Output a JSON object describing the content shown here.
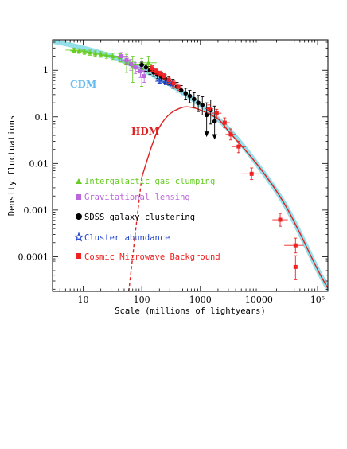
{
  "chart_data": {
    "type": "scatter",
    "xlabel": "Scale (millions of lightyears)",
    "ylabel": "Density fluctuations",
    "xscale": "log",
    "yscale": "log",
    "xlim": [
      3,
      150000
    ],
    "ylim": [
      1.8e-05,
      4.5
    ],
    "x_ticks": [
      {
        "value": 10,
        "label": "10"
      },
      {
        "value": 100,
        "label": "100"
      },
      {
        "value": 1000,
        "label": "1000"
      },
      {
        "value": 10000,
        "label": "10000"
      },
      {
        "value": 100000,
        "label": "10⁵"
      }
    ],
    "y_ticks": [
      {
        "value": 1,
        "label": "1"
      },
      {
        "value": 0.1,
        "label": "0.1"
      },
      {
        "value": 0.01,
        "label": "0.01"
      },
      {
        "value": 0.001,
        "label": "0.001"
      },
      {
        "value": 0.0001,
        "label": "0.0001"
      }
    ],
    "curves": [
      {
        "name": "CDM",
        "color": "#88dde8",
        "x": [
          3,
          10,
          30,
          100,
          300,
          1000,
          3000,
          10000,
          30000,
          100000,
          150000
        ],
        "y": [
          4.2,
          3.0,
          2.0,
          1.05,
          0.5,
          0.18,
          0.055,
          0.0085,
          0.0011,
          5.3e-05,
          2.1e-05
        ]
      },
      {
        "name": "HDM",
        "color": "#dd2222",
        "x": [
          60,
          80,
          100,
          150,
          200,
          300,
          500,
          700,
          1000,
          2000,
          3000,
          10000,
          30000,
          100000,
          150000
        ],
        "y": [
          1.8e-05,
          0.00045,
          0.005,
          0.025,
          0.06,
          0.115,
          0.16,
          0.16,
          0.14,
          0.09,
          0.05,
          0.0085,
          0.0011,
          5.3e-05,
          2.1e-05
        ]
      }
    ],
    "series": [
      {
        "name": "Intergalactic gas clumping",
        "color": "#66cc22",
        "marker": "triangle",
        "points": [
          {
            "x": 7,
            "y": 2.7,
            "xerr": [
              5,
              10
            ],
            "yerr": [
              2.4,
              3.0
            ]
          },
          {
            "x": 8.5,
            "y": 2.6,
            "xerr": [
              6,
              12
            ],
            "yerr": [
              2.3,
              2.9
            ]
          },
          {
            "x": 10.5,
            "y": 2.5,
            "xerr": [
              8,
              14
            ],
            "yerr": [
              2.2,
              2.8
            ]
          },
          {
            "x": 13,
            "y": 2.4,
            "xerr": [
              10,
              17
            ],
            "yerr": [
              2.1,
              2.7
            ]
          },
          {
            "x": 16,
            "y": 2.3,
            "xerr": [
              12,
              21
            ],
            "yerr": [
              2.0,
              2.6
            ]
          },
          {
            "x": 20,
            "y": 2.2,
            "xerr": [
              15,
              26
            ],
            "yerr": [
              1.9,
              2.5
            ]
          },
          {
            "x": 25,
            "y": 2.1,
            "xerr": [
              19,
              33
            ],
            "yerr": [
              1.8,
              2.4
            ]
          },
          {
            "x": 32,
            "y": 2.0,
            "xerr": [
              24,
              42
            ],
            "yerr": [
              1.7,
              2.3
            ]
          },
          {
            "x": 42,
            "y": 1.9,
            "xerr": [
              30,
              60
            ],
            "yerr": [
              1.55,
              2.25
            ]
          },
          {
            "x": 55,
            "y": 1.5,
            "xerr": [
              40,
              80
            ],
            "yerr": [
              0.9,
              2.2
            ]
          },
          {
            "x": 70,
            "y": 1.3,
            "xerr": [
              50,
              150
            ],
            "yerr": [
              0.55,
              2.0
            ]
          },
          {
            "x": 100,
            "y": 1.1,
            "xerr": [
              60,
              160
            ],
            "yerr": [
              0.45,
              1.8
            ]
          },
          {
            "x": 130,
            "y": 1.45,
            "xerr": [
              90,
              180
            ],
            "yerr": [
              0.9,
              2.0
            ]
          }
        ]
      },
      {
        "name": "Gravitational lensing",
        "color": "#bb66dd",
        "marker": "square",
        "points": [
          {
            "x": 45,
            "y": 2.0,
            "xerr": [
              38,
              55
            ],
            "yerr": [
              1.6,
              2.4
            ]
          },
          {
            "x": 55,
            "y": 1.65,
            "xerr": [
              46,
              66
            ],
            "yerr": [
              1.3,
              2.0
            ]
          },
          {
            "x": 65,
            "y": 1.35,
            "xerr": [
              55,
              78
            ],
            "yerr": [
              1.0,
              1.7
            ]
          },
          {
            "x": 78,
            "y": 1.15,
            "xerr": [
              65,
              95
            ],
            "yerr": [
              0.85,
              1.45
            ]
          },
          {
            "x": 95,
            "y": 0.95,
            "xerr": [
              80,
              115
            ],
            "yerr": [
              0.7,
              1.25
            ]
          },
          {
            "x": 110,
            "y": 0.75,
            "xerr": [
              92,
              130
            ],
            "yerr": [
              0.55,
              1.0
            ]
          }
        ]
      },
      {
        "name": "SDSS galaxy clustering",
        "color": "#000000",
        "marker": "circle",
        "points": [
          {
            "x": 100,
            "y": 1.3,
            "yerr": [
              1.1,
              1.5
            ]
          },
          {
            "x": 118,
            "y": 1.15,
            "yerr": [
              0.95,
              1.35
            ]
          },
          {
            "x": 138,
            "y": 1.0,
            "yerr": [
              0.82,
              1.2
            ]
          },
          {
            "x": 160,
            "y": 0.9,
            "yerr": [
              0.74,
              1.08
            ]
          },
          {
            "x": 185,
            "y": 0.8,
            "yerr": [
              0.66,
              0.96
            ]
          },
          {
            "x": 215,
            "y": 0.72,
            "yerr": [
              0.58,
              0.88
            ]
          },
          {
            "x": 250,
            "y": 0.66,
            "yerr": [
              0.53,
              0.8
            ]
          },
          {
            "x": 290,
            "y": 0.6,
            "yerr": [
              0.48,
              0.74
            ]
          },
          {
            "x": 340,
            "y": 0.52,
            "yerr": [
              0.41,
              0.64
            ]
          },
          {
            "x": 400,
            "y": 0.44,
            "yerr": [
              0.34,
              0.55
            ]
          },
          {
            "x": 470,
            "y": 0.37,
            "yerr": [
              0.28,
              0.47
            ]
          },
          {
            "x": 560,
            "y": 0.32,
            "yerr": [
              0.24,
              0.41
            ]
          },
          {
            "x": 660,
            "y": 0.28,
            "yerr": [
              0.2,
              0.37
            ]
          },
          {
            "x": 780,
            "y": 0.24,
            "yerr": [
              0.16,
              0.33
            ]
          },
          {
            "x": 920,
            "y": 0.2,
            "yerr": [
              0.13,
              0.29
            ]
          },
          {
            "x": 1080,
            "y": 0.18,
            "yerr": [
              0.11,
              0.27
            ]
          },
          {
            "x": 1280,
            "y": 0.11,
            "yerr": [
              0.04,
              0.2
            ],
            "upper_limit": true
          },
          {
            "x": 1500,
            "y": 0.14,
            "yerr": [
              0.07,
              0.23
            ]
          },
          {
            "x": 1750,
            "y": 0.08,
            "yerr": [
              0.035,
              0.17
            ],
            "upper_limit": true
          }
        ]
      },
      {
        "name": "Cluster abundance",
        "color": "#2244cc",
        "marker": "star",
        "points": [
          {
            "x": 200,
            "y": 0.58,
            "xerr": [
              170,
              235
            ],
            "yerr": [
              0.52,
              0.66
            ]
          },
          {
            "x": 260,
            "y": 0.55,
            "xerr": [
              225,
              300
            ],
            "yerr": [
              0.49,
              0.62
            ]
          },
          {
            "x": 330,
            "y": 0.52,
            "xerr": [
              290,
              380
            ],
            "yerr": [
              0.46,
              0.58
            ]
          }
        ]
      },
      {
        "name": "Cosmic Microwave Background",
        "color": "#ee2222",
        "marker": "square",
        "points": [
          {
            "x": 150,
            "y": 1.1,
            "xerr": [
              130,
              175
            ],
            "yerr": [
              0.95,
              1.25
            ]
          },
          {
            "x": 175,
            "y": 0.95,
            "xerr": [
              155,
              200
            ],
            "yerr": [
              0.82,
              1.08
            ]
          },
          {
            "x": 205,
            "y": 0.85,
            "xerr": [
              180,
              235
            ],
            "yerr": [
              0.74,
              0.96
            ]
          },
          {
            "x": 240,
            "y": 0.75,
            "xerr": [
              210,
              275
            ],
            "yerr": [
              0.65,
              0.85
            ]
          },
          {
            "x": 290,
            "y": 0.62,
            "xerr": [
              255,
              330
            ],
            "yerr": [
              0.53,
              0.71
            ]
          },
          {
            "x": 350,
            "y": 0.52,
            "xerr": [
              310,
              400
            ],
            "yerr": [
              0.44,
              0.6
            ]
          },
          {
            "x": 420,
            "y": 0.44,
            "xerr": [
              370,
              480
            ],
            "yerr": [
              0.37,
              0.51
            ]
          },
          {
            "x": 1400,
            "y": 0.15,
            "xerr": [
              1200,
              1650
            ],
            "yerr": [
              0.12,
              0.18
            ]
          },
          {
            "x": 1900,
            "y": 0.12,
            "xerr": [
              1600,
              2300
            ],
            "yerr": [
              0.095,
              0.145
            ]
          },
          {
            "x": 2600,
            "y": 0.075,
            "xerr": [
              2100,
              3200
            ],
            "yerr": [
              0.058,
              0.095
            ]
          },
          {
            "x": 3300,
            "y": 0.042,
            "xerr": [
              2700,
              4000
            ],
            "yerr": [
              0.032,
              0.055
            ]
          },
          {
            "x": 4500,
            "y": 0.023,
            "xerr": [
              3500,
              6000
            ],
            "yerr": [
              0.017,
              0.03
            ]
          },
          {
            "x": 7500,
            "y": 0.006,
            "xerr": [
              5000,
              11000
            ],
            "yerr": [
              0.0045,
              0.008
            ]
          },
          {
            "x": 23000,
            "y": 0.00062,
            "xerr": [
              17000,
              31000
            ],
            "yerr": [
              0.00045,
              0.00085
            ]
          },
          {
            "x": 42000,
            "y": 0.000175,
            "xerr": [
              27000,
              58000
            ],
            "yerr": [
              0.00012,
              0.00025
            ]
          },
          {
            "x": 42000,
            "y": 6e-05,
            "xerr": [
              27000,
              60000
            ],
            "yerr": [
              3.2e-05,
              0.000105
            ]
          }
        ]
      }
    ]
  }
}
